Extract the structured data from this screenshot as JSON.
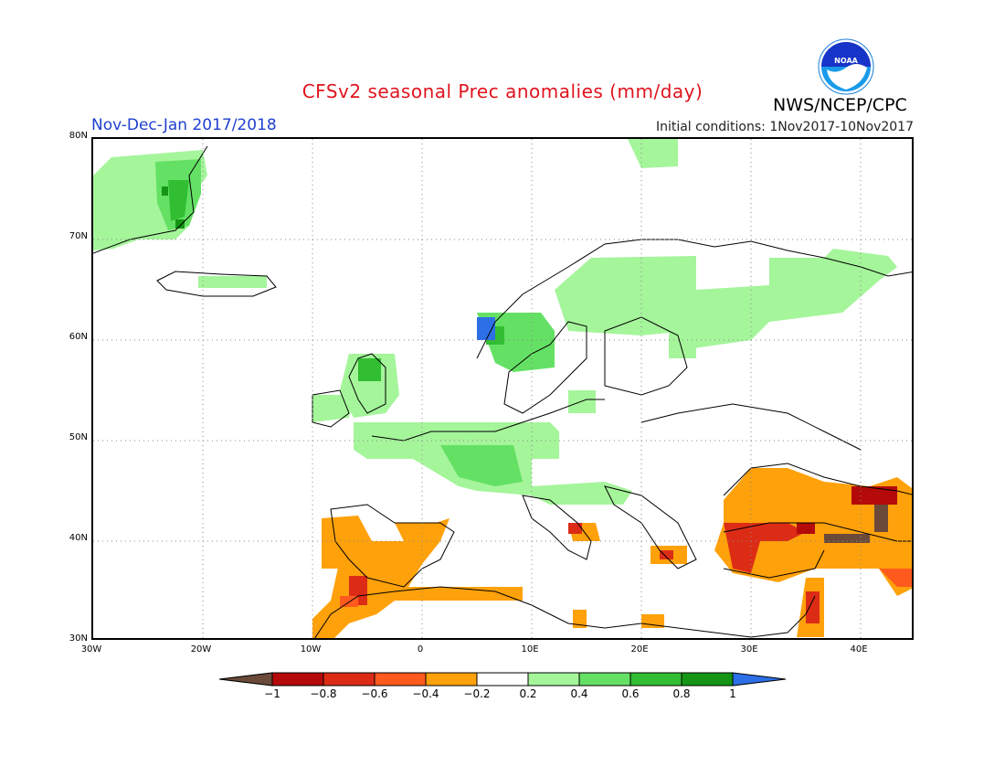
{
  "header": {
    "title": "CFSv2 seasonal Prec anomalies (mm/day)",
    "agency": "NWS/NCEP/CPC",
    "period": "Nov-Dec-Jan 2017/2018",
    "initial_conditions": "Initial conditions: 1Nov2017-10Nov2017",
    "logo_text": "NOAA",
    "logo_icon": "noaa-logo-icon"
  },
  "map": {
    "lon_range": [
      -30,
      45
    ],
    "lat_range": [
      30,
      80
    ],
    "lat_labels": [
      "30N",
      "40N",
      "50N",
      "60N",
      "70N",
      "80N"
    ],
    "lon_labels": [
      "30W",
      "20W",
      "10W",
      "0",
      "10E",
      "20E",
      "30E",
      "40E"
    ],
    "grid": "dotted"
  },
  "colorbar": {
    "labels": [
      "−1",
      "−0.8",
      "−0.6",
      "−0.4",
      "−0.2",
      "0.2",
      "0.4",
      "0.6",
      "0.8",
      "1"
    ],
    "colors": [
      "#6b4a3a",
      "#b40a0a",
      "#dc2c16",
      "#ff5a1e",
      "#ffa10a",
      "#ffffff",
      "#a5f59b",
      "#64e164",
      "#32be32",
      "#149614",
      "#2d6fe6"
    ]
  }
}
